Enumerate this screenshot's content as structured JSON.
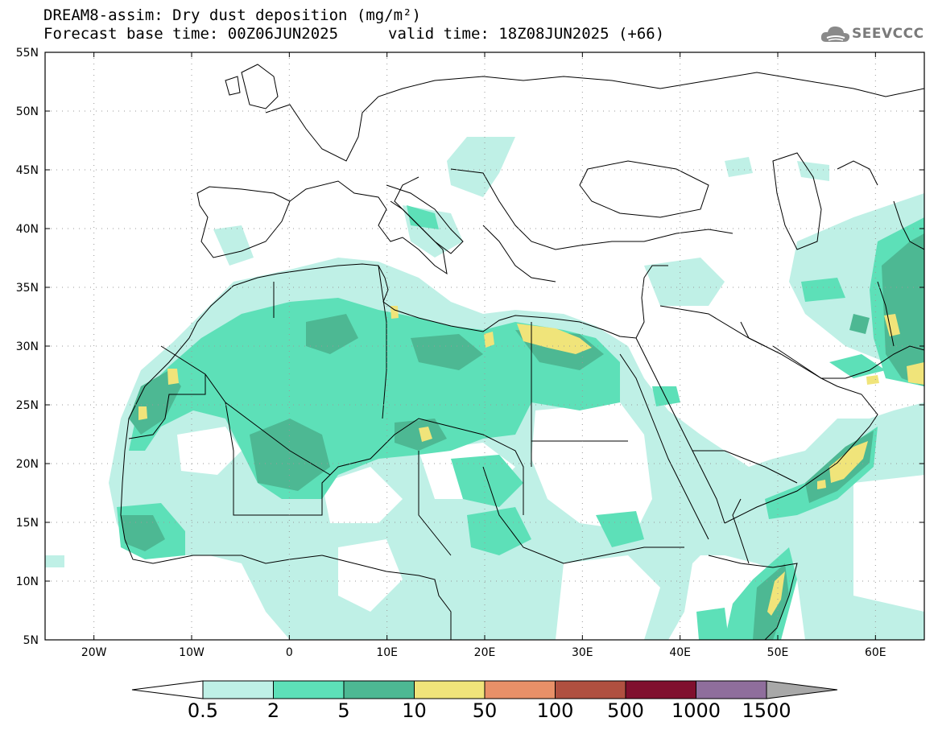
{
  "header": {
    "title_line1": "DREAM8-assim: Dry dust deposition (mg/m²)",
    "title_line2": "Forecast base time: 00Z06JUN2025",
    "valid_time": "valid time: 18Z08JUN2025 (+66)",
    "logo_text": "SEEVCCC"
  },
  "map": {
    "lon_range": [
      -25,
      65
    ],
    "lat_range": [
      5,
      55
    ],
    "x_ticks": [
      {
        "lon": -20,
        "label": "20W"
      },
      {
        "lon": -10,
        "label": "10W"
      },
      {
        "lon": 0,
        "label": "0"
      },
      {
        "lon": 10,
        "label": "10E"
      },
      {
        "lon": 20,
        "label": "20E"
      },
      {
        "lon": 30,
        "label": "30E"
      },
      {
        "lon": 40,
        "label": "40E"
      },
      {
        "lon": 50,
        "label": "50E"
      },
      {
        "lon": 60,
        "label": "60E"
      }
    ],
    "y_ticks": [
      {
        "lat": 55,
        "label": "55N"
      },
      {
        "lat": 50,
        "label": "50N"
      },
      {
        "lat": 45,
        "label": "45N"
      },
      {
        "lat": 40,
        "label": "40N"
      },
      {
        "lat": 35,
        "label": "35N"
      },
      {
        "lat": 30,
        "label": "30N"
      },
      {
        "lat": 25,
        "label": "25N"
      },
      {
        "lat": 20,
        "label": "20N"
      },
      {
        "lat": 15,
        "label": "15N"
      },
      {
        "lat": 10,
        "label": "10N"
      },
      {
        "lat": 5,
        "label": "5N"
      }
    ],
    "gridlines": true
  },
  "colorbar": {
    "labels": [
      "0.5",
      "2",
      "5",
      "10",
      "50",
      "100",
      "500",
      "1000",
      "1500"
    ],
    "colors": [
      "#bff0e6",
      "#5de0b8",
      "#4db893",
      "#f0e47a",
      "#e89068",
      "#b05040",
      "#80102e",
      "#8f6e9c"
    ],
    "under_color": "#ffffff",
    "over_color": "#a8a8a8"
  }
}
